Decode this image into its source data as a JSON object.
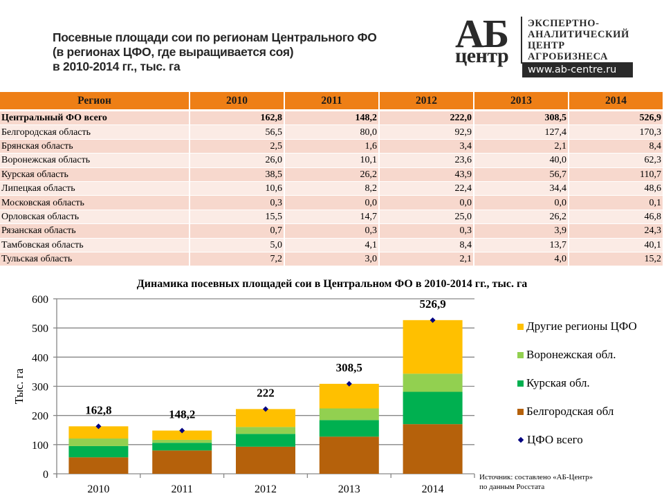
{
  "header": {
    "title_lines": [
      "Посевные площади сои по регионам Центрального ФО",
      "(в регионах ЦФО, где выращивается соя)",
      "в 2010-2014 гг., тыс. га"
    ]
  },
  "logo": {
    "mark_top": "АБ",
    "mark_bottom": "центр",
    "text_lines": [
      "ЭКСПЕРТНО-",
      "АНАЛИТИЧЕСКИЙ",
      "ЦЕНТР",
      "АГРОБИЗНЕСА"
    ],
    "url": "www.ab-centre.ru"
  },
  "table": {
    "headers": [
      "Регион",
      "2010",
      "2011",
      "2012",
      "2013",
      "2014"
    ],
    "rows": [
      {
        "region": "Центральный ФО всего",
        "values": [
          "162,8",
          "148,2",
          "222,0",
          "308,5",
          "526,9"
        ],
        "total": true
      },
      {
        "region": "Белгородская область",
        "values": [
          "56,5",
          "80,0",
          "92,9",
          "127,4",
          "170,3"
        ]
      },
      {
        "region": "Брянская область",
        "values": [
          "2,5",
          "1,6",
          "3,4",
          "2,1",
          "8,4"
        ]
      },
      {
        "region": "Воронежская область",
        "values": [
          "26,0",
          "10,1",
          "23,6",
          "40,0",
          "62,3"
        ]
      },
      {
        "region": "Курская область",
        "values": [
          "38,5",
          "26,2",
          "43,9",
          "56,7",
          "110,7"
        ]
      },
      {
        "region": "Липецкая область",
        "values": [
          "10,6",
          "8,2",
          "22,4",
          "34,4",
          "48,6"
        ]
      },
      {
        "region": "Московская область",
        "values": [
          "0,3",
          "0,0",
          "0,0",
          "0,0",
          "0,1"
        ]
      },
      {
        "region": "Орловская область",
        "values": [
          "15,5",
          "14,7",
          "25,0",
          "26,2",
          "46,8"
        ]
      },
      {
        "region": "Рязанская область",
        "values": [
          "0,7",
          "0,3",
          "0,3",
          "3,9",
          "24,3"
        ]
      },
      {
        "region": "Тамбовская область",
        "values": [
          "5,0",
          "4,1",
          "8,4",
          "13,7",
          "40,1"
        ]
      },
      {
        "region": "Тульская  область",
        "values": [
          "7,2",
          "3,0",
          "2,1",
          "4,0",
          "15,2"
        ]
      }
    ]
  },
  "colors": {
    "table_header": "#ee7f16",
    "row_odd": "#f7d8cd",
    "row_even": "#fbebe5"
  },
  "chart_data": {
    "type": "bar",
    "stacked": true,
    "title": "Динамика посевных площадей сои в Центральном ФО в 2010-2014 гг., тыс. га",
    "xlabel": "",
    "ylabel": "Тыс. га",
    "categories": [
      "2010",
      "2011",
      "2012",
      "2013",
      "2014"
    ],
    "ylim": [
      0,
      600
    ],
    "yticks": [
      0,
      100,
      200,
      300,
      400,
      500,
      600
    ],
    "grid": true,
    "legend_position": "right",
    "series": [
      {
        "name": "Белгородская обл",
        "color": "#b5610b",
        "values": [
          56.5,
          80.0,
          92.9,
          127.4,
          170.3
        ]
      },
      {
        "name": "Курская обл.",
        "color": "#00b050",
        "values": [
          38.5,
          26.2,
          43.9,
          56.7,
          110.7
        ]
      },
      {
        "name": "Воронежская обл.",
        "color": "#92d050",
        "values": [
          26.0,
          10.1,
          23.6,
          40.0,
          62.3
        ]
      },
      {
        "name": "Другие регионы ЦФО",
        "color": "#ffc000",
        "values": [
          41.8,
          31.9,
          61.6,
          84.4,
          183.6
        ]
      }
    ],
    "total_series": {
      "name": "ЦФО всего",
      "type": "scatter",
      "marker": "diamond",
      "color": "#000080",
      "values": [
        162.8,
        148.2,
        222.0,
        308.5,
        526.9
      ],
      "labels": [
        "162,8",
        "148,2",
        "222",
        "308,5",
        "526,9"
      ]
    },
    "legend_order": [
      "Другие регионы ЦФО",
      "Воронежская обл.",
      "Курская обл.",
      "Белгородская обл",
      "ЦФО всего"
    ]
  },
  "source": {
    "lines": [
      "Источник:  составлено «АБ-Центр»",
      "по данным Росстата"
    ]
  }
}
